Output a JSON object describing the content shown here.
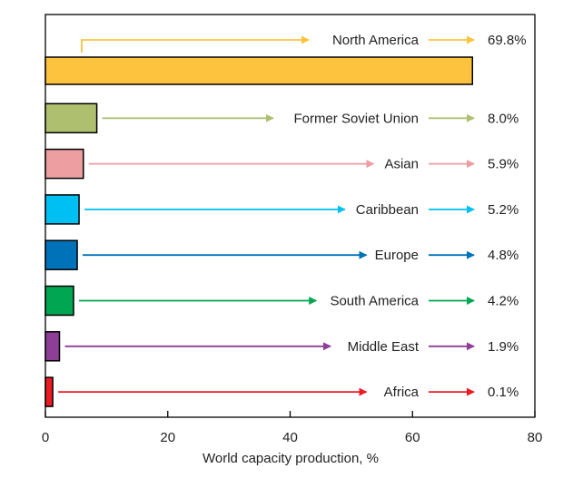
{
  "chart_data": {
    "type": "bar",
    "orientation": "horizontal",
    "xlabel": "World capacity production, %",
    "xlim": [
      0,
      80
    ],
    "xticks": [
      0,
      20,
      40,
      60,
      80
    ],
    "grid": false,
    "legend": "none",
    "categories": [
      "North America",
      "Former Soviet Union",
      "Asian",
      "Caribbean",
      "Europe",
      "South America",
      "Middle East",
      "Africa"
    ],
    "values": [
      69.8,
      8.0,
      5.9,
      5.2,
      4.8,
      4.2,
      1.9,
      0.1
    ],
    "value_labels": [
      "69.8%",
      "8.0%",
      "5.9%",
      "5.2%",
      "4.8%",
      "4.2%",
      "1.9%",
      "0.1%"
    ],
    "bar_display_values": [
      69.8,
      8.4,
      6.2,
      5.5,
      5.2,
      4.6,
      2.3,
      1.2
    ],
    "colors": [
      "#FDC33E",
      "#AEBF6F",
      "#EC9EA1",
      "#00C0F3",
      "#0072BA",
      "#00A651",
      "#8E3E96",
      "#ED1C24"
    ]
  }
}
